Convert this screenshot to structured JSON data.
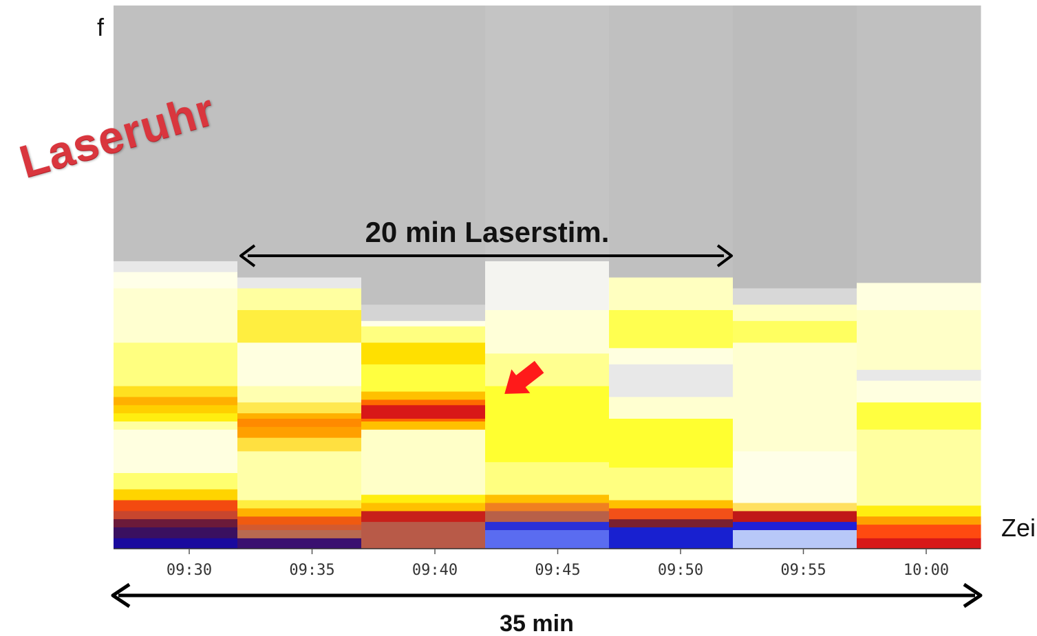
{
  "chart_data": {
    "type": "heatmap",
    "title": "",
    "xlabel": "Zei",
    "ylabel": "f",
    "x_ticks": [
      "09:30",
      "09:35",
      "09:40",
      "09:45",
      "09:50",
      "09:55",
      "10:00"
    ],
    "columns": [
      {
        "time": "09:30",
        "bands": [
          {
            "from": 0.0,
            "to": 0.02,
            "color": "#1a0a9e"
          },
          {
            "from": 0.02,
            "to": 0.04,
            "color": "#3a1060"
          },
          {
            "from": 0.04,
            "to": 0.055,
            "color": "#6b1a3a"
          },
          {
            "from": 0.055,
            "to": 0.07,
            "color": "#c8462e"
          },
          {
            "from": 0.07,
            "to": 0.09,
            "color": "#f34a10"
          },
          {
            "from": 0.09,
            "to": 0.11,
            "color": "#ffd400"
          },
          {
            "from": 0.11,
            "to": 0.14,
            "color": "#ffff70"
          },
          {
            "from": 0.14,
            "to": 0.22,
            "color": "#ffffe0"
          },
          {
            "from": 0.22,
            "to": 0.235,
            "color": "#ffffa0"
          },
          {
            "from": 0.235,
            "to": 0.25,
            "color": "#ffee10"
          },
          {
            "from": 0.25,
            "to": 0.265,
            "color": "#ffd000"
          },
          {
            "from": 0.265,
            "to": 0.28,
            "color": "#ffb000"
          },
          {
            "from": 0.28,
            "to": 0.3,
            "color": "#ffe020"
          },
          {
            "from": 0.3,
            "to": 0.38,
            "color": "#ffff80"
          },
          {
            "from": 0.38,
            "to": 0.48,
            "color": "#ffffd0"
          },
          {
            "from": 0.48,
            "to": 0.51,
            "color": "#ffffe8"
          },
          {
            "from": 0.51,
            "to": 0.53,
            "color": "#e8e8e8"
          },
          {
            "from": 0.53,
            "to": 1.0,
            "color": "#c0c0c0"
          }
        ]
      },
      {
        "time": "09:35",
        "bands": [
          {
            "from": 0.0,
            "to": 0.02,
            "color": "#3a1070"
          },
          {
            "from": 0.02,
            "to": 0.035,
            "color": "#b86a50"
          },
          {
            "from": 0.035,
            "to": 0.045,
            "color": "#d25a30"
          },
          {
            "from": 0.045,
            "to": 0.06,
            "color": "#f05a10"
          },
          {
            "from": 0.06,
            "to": 0.075,
            "color": "#ffb000"
          },
          {
            "from": 0.075,
            "to": 0.09,
            "color": "#ffee40"
          },
          {
            "from": 0.09,
            "to": 0.18,
            "color": "#ffffa8"
          },
          {
            "from": 0.18,
            "to": 0.205,
            "color": "#ffe040"
          },
          {
            "from": 0.205,
            "to": 0.225,
            "color": "#ffa000"
          },
          {
            "from": 0.225,
            "to": 0.24,
            "color": "#ff8a00"
          },
          {
            "from": 0.24,
            "to": 0.25,
            "color": "#ffb000"
          },
          {
            "from": 0.25,
            "to": 0.27,
            "color": "#ffe850"
          },
          {
            "from": 0.27,
            "to": 0.3,
            "color": "#ffffb0"
          },
          {
            "from": 0.3,
            "to": 0.38,
            "color": "#ffffe0"
          },
          {
            "from": 0.38,
            "to": 0.44,
            "color": "#ffee40"
          },
          {
            "from": 0.44,
            "to": 0.48,
            "color": "#ffffa0"
          },
          {
            "from": 0.48,
            "to": 0.5,
            "color": "#e8e8e8"
          },
          {
            "from": 0.5,
            "to": 1.0,
            "color": "#c0c0c0"
          }
        ]
      },
      {
        "time": "09:40",
        "bands": [
          {
            "from": 0.0,
            "to": 0.05,
            "color": "#b85a48"
          },
          {
            "from": 0.05,
            "to": 0.07,
            "color": "#c8201a"
          },
          {
            "from": 0.07,
            "to": 0.085,
            "color": "#ffc000"
          },
          {
            "from": 0.085,
            "to": 0.1,
            "color": "#ffee10"
          },
          {
            "from": 0.1,
            "to": 0.22,
            "color": "#ffffc8"
          },
          {
            "from": 0.22,
            "to": 0.235,
            "color": "#ffc000"
          },
          {
            "from": 0.235,
            "to": 0.24,
            "color": "#ff6a00"
          },
          {
            "from": 0.24,
            "to": 0.265,
            "color": "#d81818"
          },
          {
            "from": 0.265,
            "to": 0.275,
            "color": "#ff6a00"
          },
          {
            "from": 0.275,
            "to": 0.29,
            "color": "#ffc000"
          },
          {
            "from": 0.29,
            "to": 0.34,
            "color": "#ffff40"
          },
          {
            "from": 0.34,
            "to": 0.38,
            "color": "#ffe000"
          },
          {
            "from": 0.38,
            "to": 0.41,
            "color": "#ffff80"
          },
          {
            "from": 0.41,
            "to": 0.42,
            "color": "#ffffe8"
          },
          {
            "from": 0.42,
            "to": 0.45,
            "color": "#d4d4d4"
          },
          {
            "from": 0.45,
            "to": 1.0,
            "color": "#c0c0c0"
          }
        ]
      },
      {
        "time": "09:45",
        "bands": [
          {
            "from": 0.0,
            "to": 0.035,
            "color": "#5a6cf0"
          },
          {
            "from": 0.035,
            "to": 0.05,
            "color": "#2a30d8"
          },
          {
            "from": 0.05,
            "to": 0.07,
            "color": "#b86048"
          },
          {
            "from": 0.07,
            "to": 0.085,
            "color": "#f08020"
          },
          {
            "from": 0.085,
            "to": 0.1,
            "color": "#ffc000"
          },
          {
            "from": 0.1,
            "to": 0.16,
            "color": "#ffff80"
          },
          {
            "from": 0.16,
            "to": 0.3,
            "color": "#ffff30"
          },
          {
            "from": 0.3,
            "to": 0.36,
            "color": "#ffff90"
          },
          {
            "from": 0.36,
            "to": 0.44,
            "color": "#ffffd8"
          },
          {
            "from": 0.44,
            "to": 0.53,
            "color": "#f4f4f0"
          },
          {
            "from": 0.53,
            "to": 1.0,
            "color": "#c4c4c4"
          }
        ]
      },
      {
        "time": "09:50",
        "bands": [
          {
            "from": 0.0,
            "to": 0.04,
            "color": "#1820d0"
          },
          {
            "from": 0.04,
            "to": 0.055,
            "color": "#7a2030"
          },
          {
            "from": 0.055,
            "to": 0.075,
            "color": "#f25018"
          },
          {
            "from": 0.075,
            "to": 0.09,
            "color": "#ffc000"
          },
          {
            "from": 0.09,
            "to": 0.15,
            "color": "#ffff80"
          },
          {
            "from": 0.15,
            "to": 0.24,
            "color": "#ffff30"
          },
          {
            "from": 0.24,
            "to": 0.28,
            "color": "#ffffd0"
          },
          {
            "from": 0.28,
            "to": 0.34,
            "color": "#e8e8e8"
          },
          {
            "from": 0.34,
            "to": 0.37,
            "color": "#ffffe0"
          },
          {
            "from": 0.37,
            "to": 0.44,
            "color": "#ffff50"
          },
          {
            "from": 0.44,
            "to": 0.5,
            "color": "#ffffc0"
          },
          {
            "from": 0.5,
            "to": 1.0,
            "color": "#c0c0c0"
          }
        ]
      },
      {
        "time": "09:55",
        "bands": [
          {
            "from": 0.0,
            "to": 0.035,
            "color": "#b8c8f8"
          },
          {
            "from": 0.035,
            "to": 0.05,
            "color": "#2020d8"
          },
          {
            "from": 0.05,
            "to": 0.07,
            "color": "#c01818"
          },
          {
            "from": 0.07,
            "to": 0.085,
            "color": "#ffe060"
          },
          {
            "from": 0.085,
            "to": 0.18,
            "color": "#ffffe8"
          },
          {
            "from": 0.18,
            "to": 0.38,
            "color": "#ffffd0"
          },
          {
            "from": 0.38,
            "to": 0.42,
            "color": "#ffff60"
          },
          {
            "from": 0.42,
            "to": 0.45,
            "color": "#ffffc0"
          },
          {
            "from": 0.45,
            "to": 0.48,
            "color": "#d8d8d8"
          },
          {
            "from": 0.48,
            "to": 1.0,
            "color": "#bcbcbc"
          }
        ]
      },
      {
        "time": "10:00",
        "bands": [
          {
            "from": 0.0,
            "to": 0.02,
            "color": "#d81818"
          },
          {
            "from": 0.02,
            "to": 0.045,
            "color": "#ff4a10"
          },
          {
            "from": 0.045,
            "to": 0.06,
            "color": "#ffa000"
          },
          {
            "from": 0.06,
            "to": 0.08,
            "color": "#ffee10"
          },
          {
            "from": 0.08,
            "to": 0.22,
            "color": "#ffffa0"
          },
          {
            "from": 0.22,
            "to": 0.27,
            "color": "#ffff40"
          },
          {
            "from": 0.27,
            "to": 0.31,
            "color": "#ffffe0"
          },
          {
            "from": 0.31,
            "to": 0.33,
            "color": "#e8e8e8"
          },
          {
            "from": 0.33,
            "to": 0.44,
            "color": "#ffffc8"
          },
          {
            "from": 0.44,
            "to": 0.49,
            "color": "#ffffe0"
          },
          {
            "from": 0.49,
            "to": 1.0,
            "color": "#c0c0c0"
          }
        ]
      }
    ],
    "annotations": [
      {
        "id": "stim",
        "text": "20 min Laserstim.",
        "type": "double-arrow",
        "from": "09:35",
        "to": "09:50"
      },
      {
        "id": "total",
        "text": "35 min",
        "type": "double-arrow",
        "from": "09:30",
        "to": "10:00"
      },
      {
        "id": "pointer",
        "type": "red-arrow",
        "color": "#ff1a1a",
        "at": "09:45"
      }
    ]
  },
  "stamp": {
    "text": "Laseruhr",
    "color": "#d9363e"
  }
}
